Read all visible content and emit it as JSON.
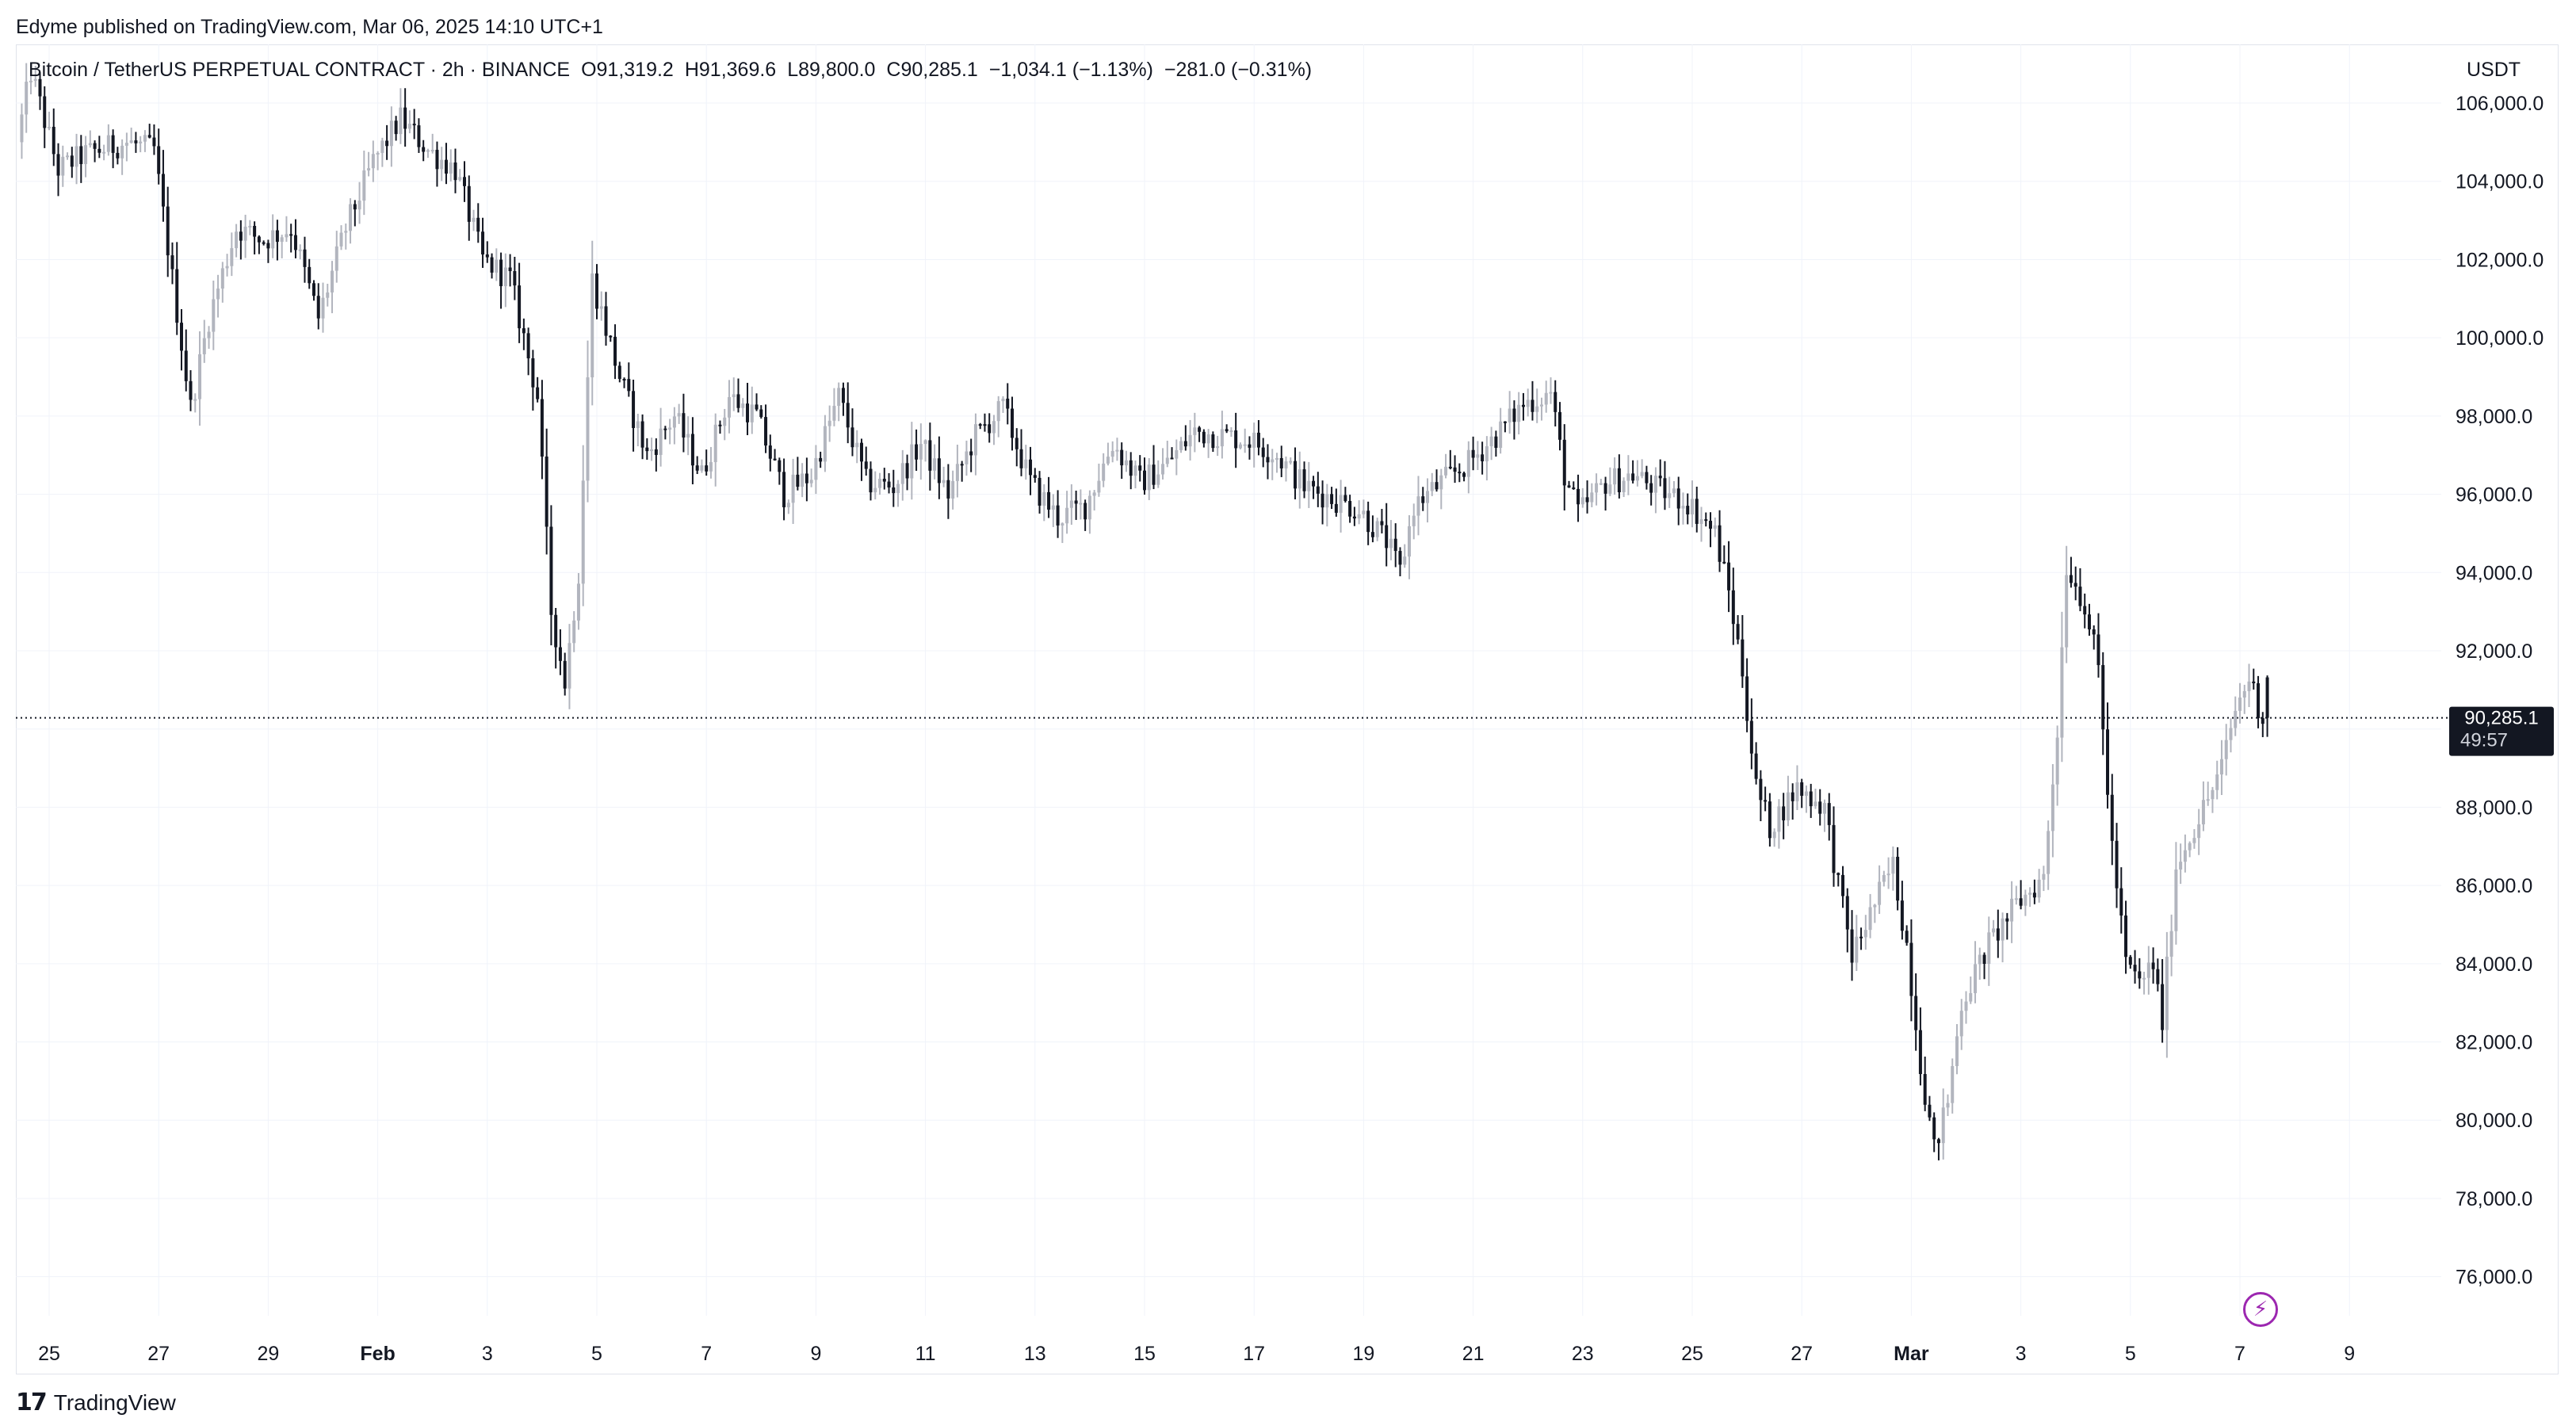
{
  "publisher": "Edyme published on TradingView.com, Mar 06, 2025 14:10 UTC+1",
  "legend": {
    "symbol": "Bitcoin / TetherUS PERPETUAL CONTRACT · 2h · BINANCE",
    "open": "O91,319.2",
    "high": "H91,369.6",
    "low": "L89,800.0",
    "close": "C90,285.1",
    "change": "−1,034.1 (−1.13%)",
    "change2": "−281.0 (−0.31%)"
  },
  "currency": "USDT",
  "last_price": {
    "value": "90,285.1",
    "countdown": "49:57"
  },
  "footer_brand": "TradingView",
  "colors": {
    "candle": "#131722",
    "candle_up": "#b2b5be",
    "grid": "#f0f3fa",
    "last_price_bg": "#131722"
  },
  "chart_data": {
    "type": "candlestick",
    "interval": "2h",
    "x_tick_labels": [
      "25",
      "27",
      "29",
      "Feb",
      "3",
      "5",
      "7",
      "9",
      "11",
      "13",
      "15",
      "17",
      "19",
      "21",
      "23",
      "25",
      "27",
      "Mar",
      "3",
      "5",
      "7",
      "9"
    ],
    "x_range": [
      "Jan 24",
      "Mar 10"
    ],
    "ylim": [
      75000,
      107500
    ],
    "y_ticks": [
      76000,
      78000,
      80000,
      82000,
      84000,
      86000,
      88000,
      90000,
      92000,
      94000,
      96000,
      98000,
      100000,
      102000,
      104000,
      106000
    ],
    "y_tick_labels": [
      "76,000.0",
      "78,000.0",
      "80,000.0",
      "82,000.0",
      "84,000.0",
      "86,000.0",
      "88,000.0",
      "90,000.0",
      "92,000.0",
      "94,000.0",
      "96,000.0",
      "98,000.0",
      "100,000.0",
      "102,000.0",
      "104,000.0",
      "106,000.0"
    ],
    "last_price": 90285.1,
    "ohlc_anchor": {
      "open": 91319.2,
      "high": 91369.6,
      "low": 89800.0,
      "close": 90285.1
    },
    "close_path": [
      [
        "Jan 24 12:00",
        105000
      ],
      [
        "Jan 24 18:00",
        106800
      ],
      [
        "Jan 25 06:00",
        104300
      ],
      [
        "Jan 25 18:00",
        104700
      ],
      [
        "Jan 26 12:00",
        105000
      ],
      [
        "Jan 27 00:00",
        104800
      ],
      [
        "Jan 27 08:00",
        101500
      ],
      [
        "Jan 27 16:00",
        98200
      ],
      [
        "Jan 28 00:00",
        100500
      ],
      [
        "Jan 28 12:00",
        102800
      ],
      [
        "Jan 29 00:00",
        102500
      ],
      [
        "Jan 29 12:00",
        102800
      ],
      [
        "Jan 30 00:00",
        100500
      ],
      [
        "Jan 30 12:00",
        102800
      ],
      [
        "Jan 31 00:00",
        104500
      ],
      [
        "Jan 31 12:00",
        105600
      ],
      [
        "Feb 01 00:00",
        104800
      ],
      [
        "Feb 01 12:00",
        104300
      ],
      [
        "Feb 02 00:00",
        102000
      ],
      [
        "Feb 02 12:00",
        101500
      ],
      [
        "Feb 03 00:00",
        98500
      ],
      [
        "Feb 03 06:00",
        93000
      ],
      [
        "Feb 03 12:00",
        91200
      ],
      [
        "Feb 03 18:00",
        94000
      ],
      [
        "Feb 04 00:00",
        101500
      ],
      [
        "Feb 04 12:00",
        99000
      ],
      [
        "Feb 05 00:00",
        97000
      ],
      [
        "Feb 05 12:00",
        98000
      ],
      [
        "Feb 06 00:00",
        96500
      ],
      [
        "Feb 06 12:00",
        98500
      ],
      [
        "Feb 07 00:00",
        98000
      ],
      [
        "Feb 07 12:00",
        96000
      ],
      [
        "Feb 08 00:00",
        96500
      ],
      [
        "Feb 08 12:00",
        98500
      ],
      [
        "Feb 09 00:00",
        96300
      ],
      [
        "Feb 09 12:00",
        96200
      ],
      [
        "Feb 10 00:00",
        97300
      ],
      [
        "Feb 10 12:00",
        96000
      ],
      [
        "Feb 11 00:00",
        97500
      ],
      [
        "Feb 11 12:00",
        98200
      ],
      [
        "Feb 12 00:00",
        96300
      ],
      [
        "Feb 12 12:00",
        95400
      ],
      [
        "Feb 13 00:00",
        95700
      ],
      [
        "Feb 13 12:00",
        97300
      ],
      [
        "Feb 14 00:00",
        96300
      ],
      [
        "Feb 14 12:00",
        96800
      ],
      [
        "Feb 15 00:00",
        97600
      ],
      [
        "Feb 15 12:00",
        97500
      ],
      [
        "Feb 16 00:00",
        97400
      ],
      [
        "Feb 16 12:00",
        97000
      ],
      [
        "Feb 17 00:00",
        96200
      ],
      [
        "Feb 17 12:00",
        95900
      ],
      [
        "Feb 18 00:00",
        95600
      ],
      [
        "Feb 18 12:00",
        94800
      ],
      [
        "Feb 18 18:00",
        94000
      ],
      [
        "Feb 19 00:00",
        95700
      ],
      [
        "Feb 19 12:00",
        96300
      ],
      [
        "Feb 20 00:00",
        96800
      ],
      [
        "Feb 20 12:00",
        97500
      ],
      [
        "Feb 21 00:00",
        98300
      ],
      [
        "Feb 21 12:00",
        98600
      ],
      [
        "Feb 21 18:00",
        96500
      ],
      [
        "Feb 22 00:00",
        95500
      ],
      [
        "Feb 22 12:00",
        96300
      ],
      [
        "Feb 23 00:00",
        96500
      ],
      [
        "Feb 23 12:00",
        96100
      ],
      [
        "Feb 24 00:00",
        95800
      ],
      [
        "Feb 24 12:00",
        95000
      ],
      [
        "Feb 24 18:00",
        93500
      ],
      [
        "Feb 25 00:00",
        91500
      ],
      [
        "Feb 25 06:00",
        88500
      ],
      [
        "Feb 25 12:00",
        87500
      ],
      [
        "Feb 26 00:00",
        88500
      ],
      [
        "Feb 26 12:00",
        88000
      ],
      [
        "Feb 26 18:00",
        86000
      ],
      [
        "Feb 27 00:00",
        84200
      ],
      [
        "Feb 27 12:00",
        85800
      ],
      [
        "Feb 27 18:00",
        86500
      ],
      [
        "Feb 28 00:00",
        84500
      ],
      [
        "Feb 28 06:00",
        81500
      ],
      [
        "Feb 28 12:00",
        79200
      ],
      [
        "Feb 28 18:00",
        80500
      ],
      [
        "Mar 01 00:00",
        83000
      ],
      [
        "Mar 01 12:00",
        84500
      ],
      [
        "Mar 02 00:00",
        85500
      ],
      [
        "Mar 02 12:00",
        86200
      ],
      [
        "Mar 02 18:00",
        90000
      ],
      [
        "Mar 02 22:00",
        94200
      ],
      [
        "Mar 03 06:00",
        93200
      ],
      [
        "Mar 03 12:00",
        91500
      ],
      [
        "Mar 03 18:00",
        87000
      ],
      [
        "Mar 04 00:00",
        84000
      ],
      [
        "Mar 04 06:00",
        83500
      ],
      [
        "Mar 04 12:00",
        84000
      ],
      [
        "Mar 04 16:00",
        82500
      ],
      [
        "Mar 04 22:00",
        86500
      ],
      [
        "Mar 05 06:00",
        87500
      ],
      [
        "Mar 05 12:00",
        88200
      ],
      [
        "Mar 05 18:00",
        89000
      ],
      [
        "Mar 06 00:00",
        90500
      ],
      [
        "Mar 06 06:00",
        91300
      ],
      [
        "Mar 06 12:00",
        90285
      ]
    ]
  }
}
